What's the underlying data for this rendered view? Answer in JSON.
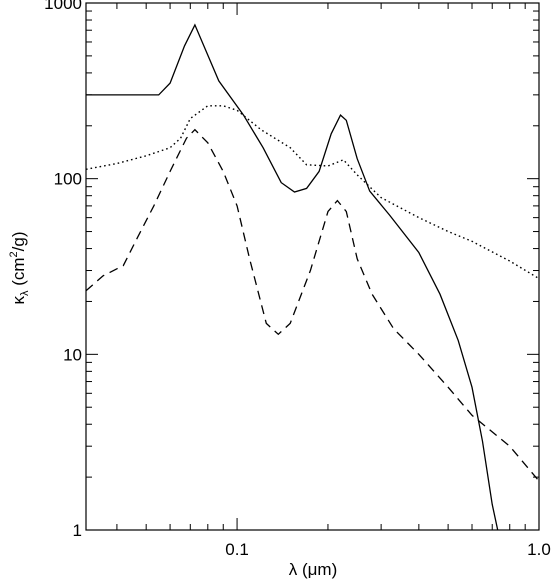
{
  "chart_data": {
    "type": "line",
    "xlabel": {
      "main": "λ (",
      "mu": "μ",
      "unit": "m)"
    },
    "ylabel": {
      "kappa": "κ",
      "sub": "λ",
      "open": " (cm",
      "sup": "2",
      "close": "/g)"
    },
    "x_scale": "log",
    "y_scale": "log",
    "xlim": [
      0.0316,
      1.0
    ],
    "ylim": [
      1,
      1000
    ],
    "x_ticks": [
      {
        "value": 0.1,
        "label": "0.1"
      },
      {
        "value": 1.0,
        "label": "1.0"
      }
    ],
    "y_ticks": [
      {
        "value": 1,
        "label": "1"
      },
      {
        "value": 10,
        "label": "10"
      },
      {
        "value": 100,
        "label": "100"
      },
      {
        "value": 1000,
        "label": "1000"
      }
    ],
    "grid": false,
    "series": [
      {
        "style": "solid",
        "points": [
          [
            0.0316,
            300
          ],
          [
            0.055,
            300
          ],
          [
            0.06,
            350
          ],
          [
            0.067,
            570
          ],
          [
            0.0725,
            750
          ],
          [
            0.079,
            530
          ],
          [
            0.087,
            360
          ],
          [
            0.105,
            230
          ],
          [
            0.122,
            150
          ],
          [
            0.14,
            95
          ],
          [
            0.155,
            84
          ],
          [
            0.17,
            88
          ],
          [
            0.187,
            110
          ],
          [
            0.205,
            180
          ],
          [
            0.22,
            230
          ],
          [
            0.23,
            215
          ],
          [
            0.25,
            130
          ],
          [
            0.275,
            85
          ],
          [
            0.32,
            62
          ],
          [
            0.4,
            38
          ],
          [
            0.47,
            22
          ],
          [
            0.54,
            12
          ],
          [
            0.6,
            6.5
          ],
          [
            0.65,
            3.2
          ],
          [
            0.7,
            1.4
          ],
          [
            0.73,
            1.0
          ]
        ]
      },
      {
        "style": "dashed",
        "points": [
          [
            0.0316,
            23
          ],
          [
            0.036,
            28
          ],
          [
            0.042,
            32
          ],
          [
            0.047,
            47
          ],
          [
            0.053,
            70
          ],
          [
            0.06,
            110
          ],
          [
            0.068,
            170
          ],
          [
            0.0725,
            190
          ],
          [
            0.08,
            160
          ],
          [
            0.09,
            110
          ],
          [
            0.1,
            70
          ],
          [
            0.11,
            35
          ],
          [
            0.125,
            15
          ],
          [
            0.137,
            13
          ],
          [
            0.15,
            15
          ],
          [
            0.175,
            30
          ],
          [
            0.2,
            65
          ],
          [
            0.215,
            75
          ],
          [
            0.23,
            65
          ],
          [
            0.25,
            35
          ],
          [
            0.28,
            22
          ],
          [
            0.33,
            14
          ],
          [
            0.4,
            10
          ],
          [
            0.5,
            6.5
          ],
          [
            0.6,
            4.5
          ],
          [
            0.8,
            3
          ],
          [
            1.0,
            1.9
          ]
        ]
      },
      {
        "style": "dotted",
        "points": [
          [
            0.0316,
            113
          ],
          [
            0.04,
            122
          ],
          [
            0.05,
            135
          ],
          [
            0.06,
            150
          ],
          [
            0.065,
            170
          ],
          [
            0.07,
            220
          ],
          [
            0.08,
            260
          ],
          [
            0.09,
            260
          ],
          [
            0.1,
            245
          ],
          [
            0.12,
            190
          ],
          [
            0.15,
            150
          ],
          [
            0.17,
            120
          ],
          [
            0.2,
            118
          ],
          [
            0.225,
            128
          ],
          [
            0.25,
            105
          ],
          [
            0.3,
            78
          ],
          [
            0.4,
            60
          ],
          [
            0.5,
            50
          ],
          [
            0.6,
            44
          ],
          [
            0.8,
            34
          ],
          [
            1.0,
            27
          ]
        ]
      }
    ]
  }
}
